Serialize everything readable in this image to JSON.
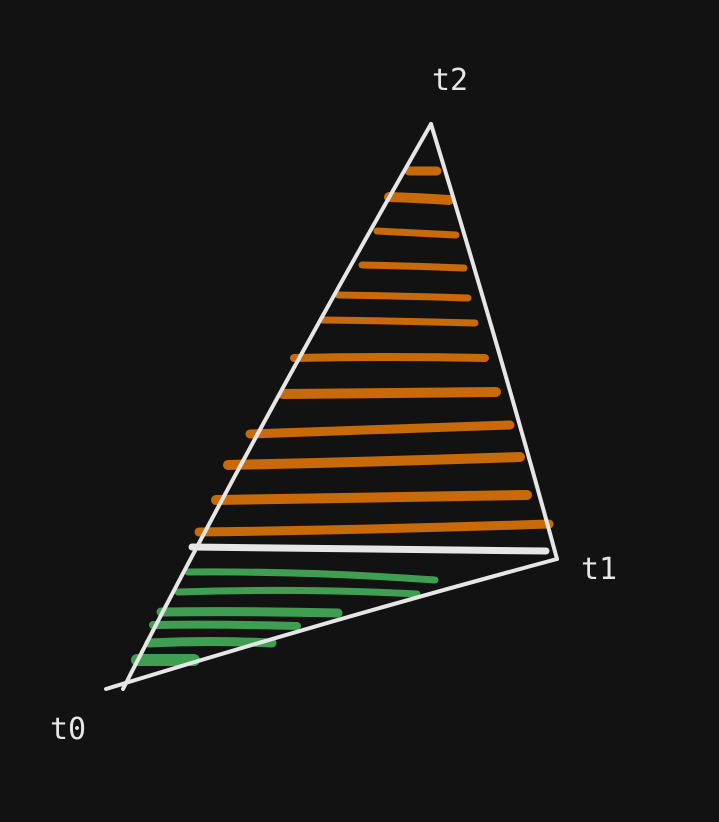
{
  "diagram": {
    "type": "triangle-scanline-fill",
    "vertices": {
      "t0": "t0",
      "t1": "t1",
      "t2": "t2"
    },
    "colors": {
      "background": "#121212",
      "outline": "#e6e6e6",
      "split_line": "#e6e6e6",
      "upper_fill": "#c8690a",
      "lower_fill": "#3f9e52"
    },
    "upper_scanline_count": 12,
    "lower_scanline_count": 6
  }
}
